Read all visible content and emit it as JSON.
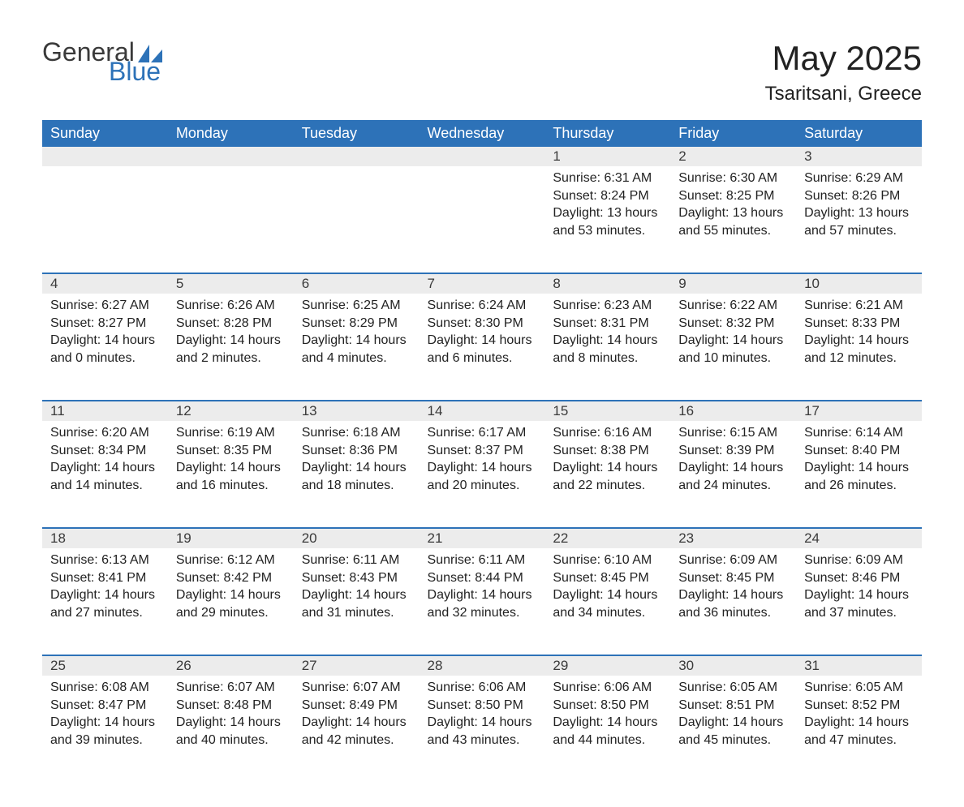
{
  "logo": {
    "text_general": "General",
    "text_blue": "Blue",
    "sail_color": "#2d72b8",
    "general_color": "#3a3a3a"
  },
  "title": "May 2025",
  "location": "Tsaritsani, Greece",
  "colors": {
    "header_bg": "#2d72b8",
    "header_text": "#ffffff",
    "daynum_bg": "#ececec",
    "text": "#222222",
    "rule": "#2d72b8"
  },
  "day_headers": [
    "Sunday",
    "Monday",
    "Tuesday",
    "Wednesday",
    "Thursday",
    "Friday",
    "Saturday"
  ],
  "weeks": [
    [
      null,
      null,
      null,
      null,
      {
        "n": "1",
        "sunrise": "6:31 AM",
        "sunset": "8:24 PM",
        "daylight": "13 hours and 53 minutes."
      },
      {
        "n": "2",
        "sunrise": "6:30 AM",
        "sunset": "8:25 PM",
        "daylight": "13 hours and 55 minutes."
      },
      {
        "n": "3",
        "sunrise": "6:29 AM",
        "sunset": "8:26 PM",
        "daylight": "13 hours and 57 minutes."
      }
    ],
    [
      {
        "n": "4",
        "sunrise": "6:27 AM",
        "sunset": "8:27 PM",
        "daylight": "14 hours and 0 minutes."
      },
      {
        "n": "5",
        "sunrise": "6:26 AM",
        "sunset": "8:28 PM",
        "daylight": "14 hours and 2 minutes."
      },
      {
        "n": "6",
        "sunrise": "6:25 AM",
        "sunset": "8:29 PM",
        "daylight": "14 hours and 4 minutes."
      },
      {
        "n": "7",
        "sunrise": "6:24 AM",
        "sunset": "8:30 PM",
        "daylight": "14 hours and 6 minutes."
      },
      {
        "n": "8",
        "sunrise": "6:23 AM",
        "sunset": "8:31 PM",
        "daylight": "14 hours and 8 minutes."
      },
      {
        "n": "9",
        "sunrise": "6:22 AM",
        "sunset": "8:32 PM",
        "daylight": "14 hours and 10 minutes."
      },
      {
        "n": "10",
        "sunrise": "6:21 AM",
        "sunset": "8:33 PM",
        "daylight": "14 hours and 12 minutes."
      }
    ],
    [
      {
        "n": "11",
        "sunrise": "6:20 AM",
        "sunset": "8:34 PM",
        "daylight": "14 hours and 14 minutes."
      },
      {
        "n": "12",
        "sunrise": "6:19 AM",
        "sunset": "8:35 PM",
        "daylight": "14 hours and 16 minutes."
      },
      {
        "n": "13",
        "sunrise": "6:18 AM",
        "sunset": "8:36 PM",
        "daylight": "14 hours and 18 minutes."
      },
      {
        "n": "14",
        "sunrise": "6:17 AM",
        "sunset": "8:37 PM",
        "daylight": "14 hours and 20 minutes."
      },
      {
        "n": "15",
        "sunrise": "6:16 AM",
        "sunset": "8:38 PM",
        "daylight": "14 hours and 22 minutes."
      },
      {
        "n": "16",
        "sunrise": "6:15 AM",
        "sunset": "8:39 PM",
        "daylight": "14 hours and 24 minutes."
      },
      {
        "n": "17",
        "sunrise": "6:14 AM",
        "sunset": "8:40 PM",
        "daylight": "14 hours and 26 minutes."
      }
    ],
    [
      {
        "n": "18",
        "sunrise": "6:13 AM",
        "sunset": "8:41 PM",
        "daylight": "14 hours and 27 minutes."
      },
      {
        "n": "19",
        "sunrise": "6:12 AM",
        "sunset": "8:42 PM",
        "daylight": "14 hours and 29 minutes."
      },
      {
        "n": "20",
        "sunrise": "6:11 AM",
        "sunset": "8:43 PM",
        "daylight": "14 hours and 31 minutes."
      },
      {
        "n": "21",
        "sunrise": "6:11 AM",
        "sunset": "8:44 PM",
        "daylight": "14 hours and 32 minutes."
      },
      {
        "n": "22",
        "sunrise": "6:10 AM",
        "sunset": "8:45 PM",
        "daylight": "14 hours and 34 minutes."
      },
      {
        "n": "23",
        "sunrise": "6:09 AM",
        "sunset": "8:45 PM",
        "daylight": "14 hours and 36 minutes."
      },
      {
        "n": "24",
        "sunrise": "6:09 AM",
        "sunset": "8:46 PM",
        "daylight": "14 hours and 37 minutes."
      }
    ],
    [
      {
        "n": "25",
        "sunrise": "6:08 AM",
        "sunset": "8:47 PM",
        "daylight": "14 hours and 39 minutes."
      },
      {
        "n": "26",
        "sunrise": "6:07 AM",
        "sunset": "8:48 PM",
        "daylight": "14 hours and 40 minutes."
      },
      {
        "n": "27",
        "sunrise": "6:07 AM",
        "sunset": "8:49 PM",
        "daylight": "14 hours and 42 minutes."
      },
      {
        "n": "28",
        "sunrise": "6:06 AM",
        "sunset": "8:50 PM",
        "daylight": "14 hours and 43 minutes."
      },
      {
        "n": "29",
        "sunrise": "6:06 AM",
        "sunset": "8:50 PM",
        "daylight": "14 hours and 44 minutes."
      },
      {
        "n": "30",
        "sunrise": "6:05 AM",
        "sunset": "8:51 PM",
        "daylight": "14 hours and 45 minutes."
      },
      {
        "n": "31",
        "sunrise": "6:05 AM",
        "sunset": "8:52 PM",
        "daylight": "14 hours and 47 minutes."
      }
    ]
  ],
  "labels": {
    "sunrise": "Sunrise: ",
    "sunset": "Sunset: ",
    "daylight": "Daylight: "
  }
}
